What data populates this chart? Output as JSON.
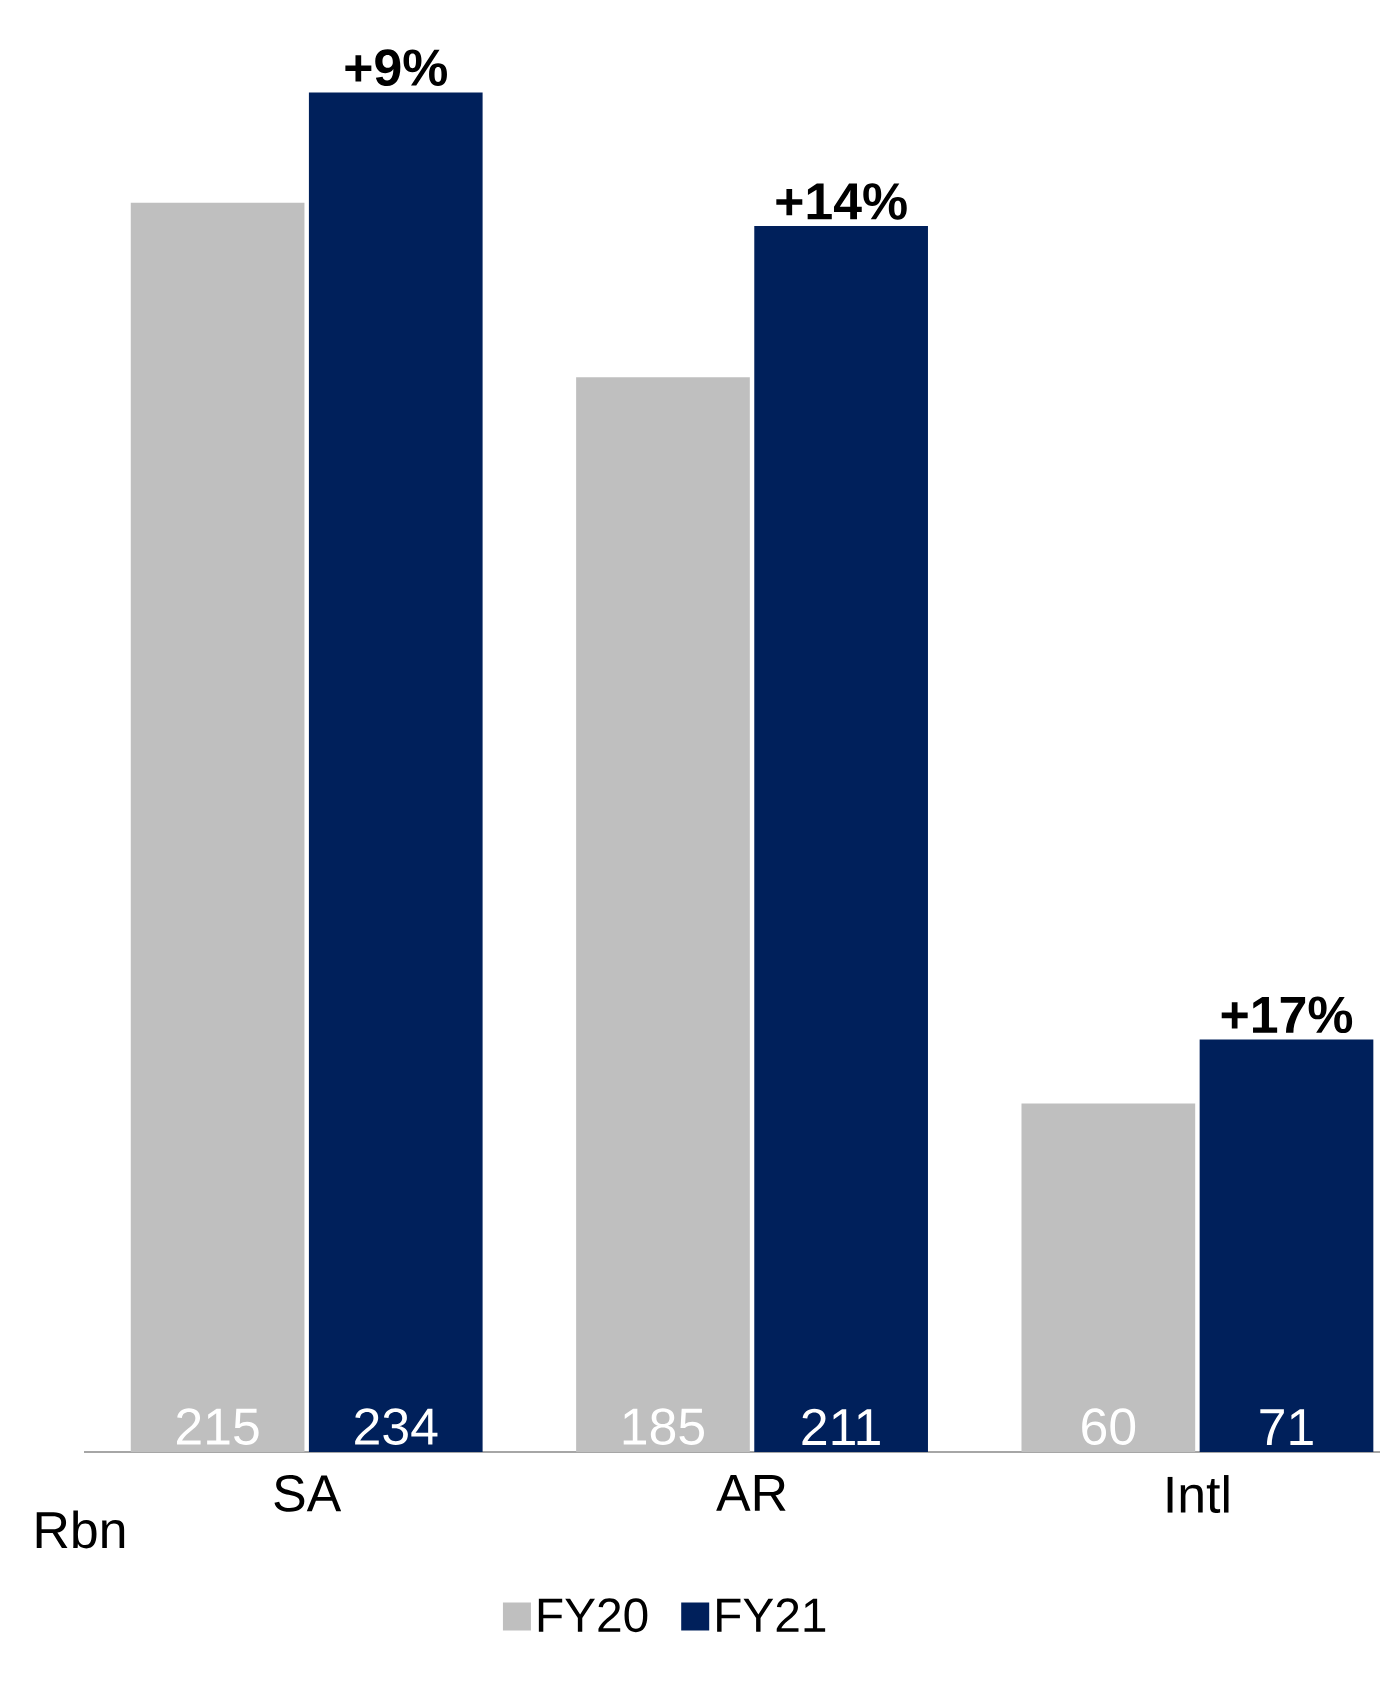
{
  "chart_data": {
    "type": "bar",
    "categories": [
      "SA",
      "AR",
      "Intl"
    ],
    "series": [
      {
        "name": "FY20",
        "color": "#bfbfbf",
        "values": [
          215,
          185,
          60
        ]
      },
      {
        "name": "FY21",
        "color": "#00205b",
        "values": [
          234,
          211,
          71
        ]
      }
    ],
    "data_labels": true,
    "legend": "bottom",
    "annotations": [
      {
        "text": "+9%",
        "x": "SA",
        "y": 234
      },
      {
        "text": "+14%",
        "x": "AR",
        "y": 211
      },
      {
        "text": "+17%",
        "x": "Intl",
        "y": 71
      },
      "Rbn"
    ]
  }
}
